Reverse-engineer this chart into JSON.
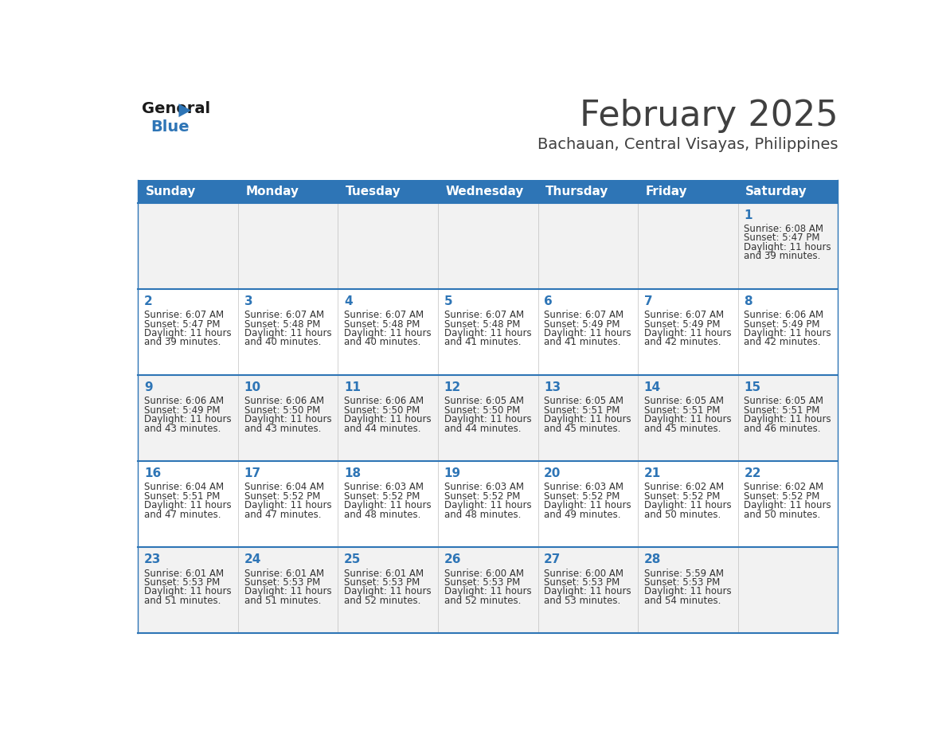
{
  "title": "February 2025",
  "subtitle": "Bachauan, Central Visayas, Philippines",
  "header_bg": "#2E75B6",
  "header_text_color": "#FFFFFF",
  "day_headers": [
    "Sunday",
    "Monday",
    "Tuesday",
    "Wednesday",
    "Thursday",
    "Friday",
    "Saturday"
  ],
  "row_bg_even": "#F2F2F2",
  "row_bg_odd": "#FFFFFF",
  "separator_color": "#2E75B6",
  "title_color": "#404040",
  "subtitle_color": "#404040",
  "day_num_color": "#2E75B6",
  "cell_text_color": "#333333",
  "logo_general_color": "#1a1a1a",
  "logo_blue_color": "#2E75B6",
  "logo_triangle_color": "#2E75B6",
  "calendar_data": [
    [
      {
        "day": null,
        "sunrise": null,
        "sunset": null,
        "daylight": null
      },
      {
        "day": null,
        "sunrise": null,
        "sunset": null,
        "daylight": null
      },
      {
        "day": null,
        "sunrise": null,
        "sunset": null,
        "daylight": null
      },
      {
        "day": null,
        "sunrise": null,
        "sunset": null,
        "daylight": null
      },
      {
        "day": null,
        "sunrise": null,
        "sunset": null,
        "daylight": null
      },
      {
        "day": null,
        "sunrise": null,
        "sunset": null,
        "daylight": null
      },
      {
        "day": 1,
        "sunrise": "6:08 AM",
        "sunset": "5:47 PM",
        "daylight": "11 hours and 39 minutes."
      }
    ],
    [
      {
        "day": 2,
        "sunrise": "6:07 AM",
        "sunset": "5:47 PM",
        "daylight": "11 hours and 39 minutes."
      },
      {
        "day": 3,
        "sunrise": "6:07 AM",
        "sunset": "5:48 PM",
        "daylight": "11 hours and 40 minutes."
      },
      {
        "day": 4,
        "sunrise": "6:07 AM",
        "sunset": "5:48 PM",
        "daylight": "11 hours and 40 minutes."
      },
      {
        "day": 5,
        "sunrise": "6:07 AM",
        "sunset": "5:48 PM",
        "daylight": "11 hours and 41 minutes."
      },
      {
        "day": 6,
        "sunrise": "6:07 AM",
        "sunset": "5:49 PM",
        "daylight": "11 hours and 41 minutes."
      },
      {
        "day": 7,
        "sunrise": "6:07 AM",
        "sunset": "5:49 PM",
        "daylight": "11 hours and 42 minutes."
      },
      {
        "day": 8,
        "sunrise": "6:06 AM",
        "sunset": "5:49 PM",
        "daylight": "11 hours and 42 minutes."
      }
    ],
    [
      {
        "day": 9,
        "sunrise": "6:06 AM",
        "sunset": "5:49 PM",
        "daylight": "11 hours and 43 minutes."
      },
      {
        "day": 10,
        "sunrise": "6:06 AM",
        "sunset": "5:50 PM",
        "daylight": "11 hours and 43 minutes."
      },
      {
        "day": 11,
        "sunrise": "6:06 AM",
        "sunset": "5:50 PM",
        "daylight": "11 hours and 44 minutes."
      },
      {
        "day": 12,
        "sunrise": "6:05 AM",
        "sunset": "5:50 PM",
        "daylight": "11 hours and 44 minutes."
      },
      {
        "day": 13,
        "sunrise": "6:05 AM",
        "sunset": "5:51 PM",
        "daylight": "11 hours and 45 minutes."
      },
      {
        "day": 14,
        "sunrise": "6:05 AM",
        "sunset": "5:51 PM",
        "daylight": "11 hours and 45 minutes."
      },
      {
        "day": 15,
        "sunrise": "6:05 AM",
        "sunset": "5:51 PM",
        "daylight": "11 hours and 46 minutes."
      }
    ],
    [
      {
        "day": 16,
        "sunrise": "6:04 AM",
        "sunset": "5:51 PM",
        "daylight": "11 hours and 47 minutes."
      },
      {
        "day": 17,
        "sunrise": "6:04 AM",
        "sunset": "5:52 PM",
        "daylight": "11 hours and 47 minutes."
      },
      {
        "day": 18,
        "sunrise": "6:03 AM",
        "sunset": "5:52 PM",
        "daylight": "11 hours and 48 minutes."
      },
      {
        "day": 19,
        "sunrise": "6:03 AM",
        "sunset": "5:52 PM",
        "daylight": "11 hours and 48 minutes."
      },
      {
        "day": 20,
        "sunrise": "6:03 AM",
        "sunset": "5:52 PM",
        "daylight": "11 hours and 49 minutes."
      },
      {
        "day": 21,
        "sunrise": "6:02 AM",
        "sunset": "5:52 PM",
        "daylight": "11 hours and 50 minutes."
      },
      {
        "day": 22,
        "sunrise": "6:02 AM",
        "sunset": "5:52 PM",
        "daylight": "11 hours and 50 minutes."
      }
    ],
    [
      {
        "day": 23,
        "sunrise": "6:01 AM",
        "sunset": "5:53 PM",
        "daylight": "11 hours and 51 minutes."
      },
      {
        "day": 24,
        "sunrise": "6:01 AM",
        "sunset": "5:53 PM",
        "daylight": "11 hours and 51 minutes."
      },
      {
        "day": 25,
        "sunrise": "6:01 AM",
        "sunset": "5:53 PM",
        "daylight": "11 hours and 52 minutes."
      },
      {
        "day": 26,
        "sunrise": "6:00 AM",
        "sunset": "5:53 PM",
        "daylight": "11 hours and 52 minutes."
      },
      {
        "day": 27,
        "sunrise": "6:00 AM",
        "sunset": "5:53 PM",
        "daylight": "11 hours and 53 minutes."
      },
      {
        "day": 28,
        "sunrise": "5:59 AM",
        "sunset": "5:53 PM",
        "daylight": "11 hours and 54 minutes."
      },
      {
        "day": null,
        "sunrise": null,
        "sunset": null,
        "daylight": null
      }
    ]
  ]
}
